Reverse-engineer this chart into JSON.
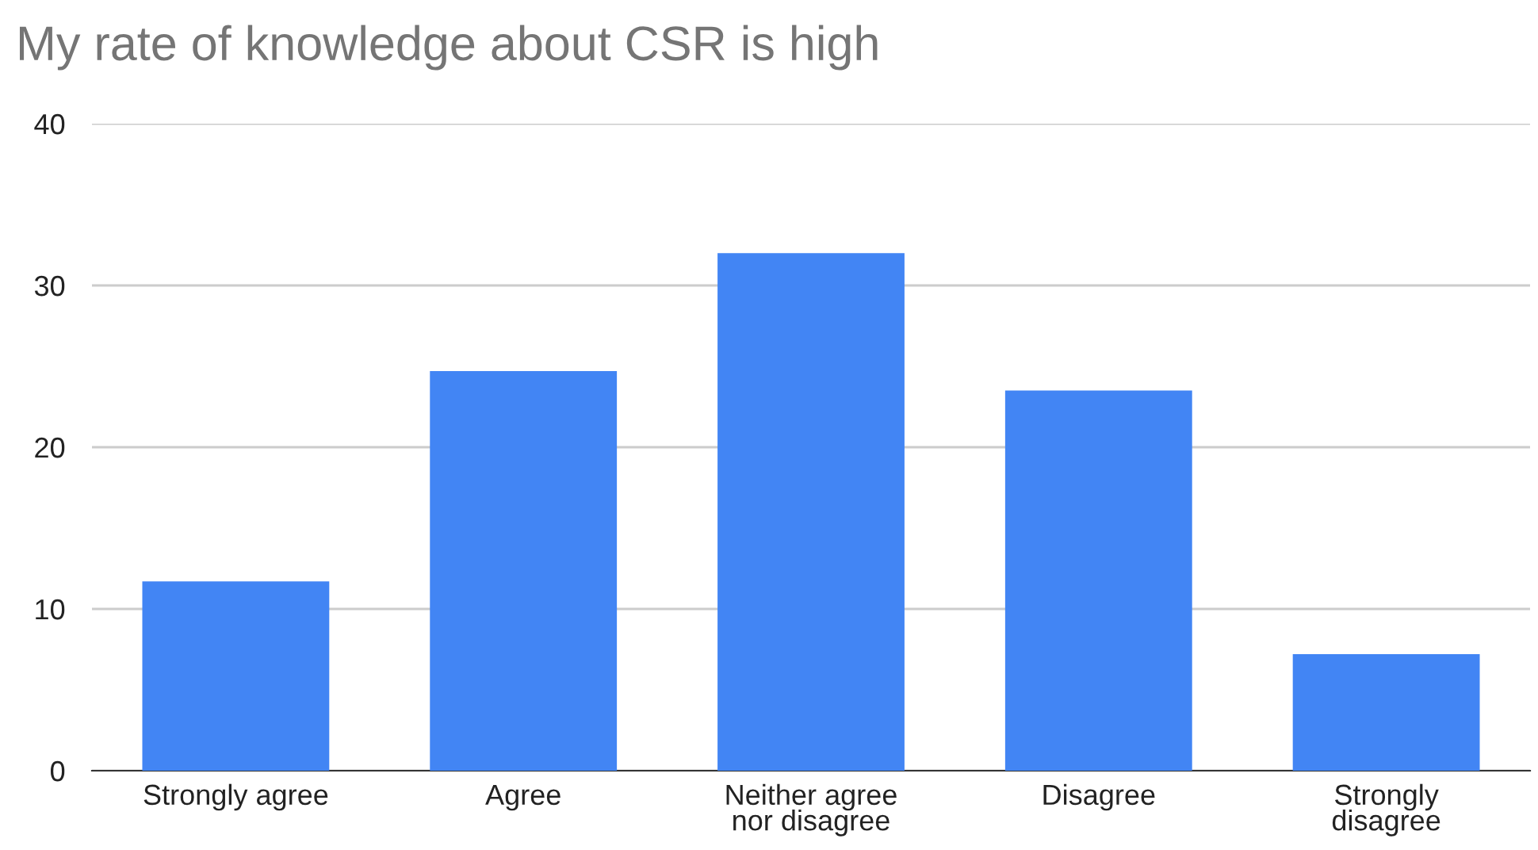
{
  "chart_data": {
    "type": "bar",
    "title": "My rate of knowledge about CSR is high",
    "categories": [
      "Strongly agree",
      "Agree",
      "Neither agree\nnor disagree",
      "Disagree",
      "Strongly\ndisagree"
    ],
    "values": [
      11.7,
      24.7,
      32,
      23.5,
      7.2
    ],
    "color": "#4285f4",
    "ylim": [
      0,
      40
    ],
    "yticks": [
      0,
      10,
      20,
      30,
      40
    ],
    "grid": "y",
    "legend": false
  }
}
